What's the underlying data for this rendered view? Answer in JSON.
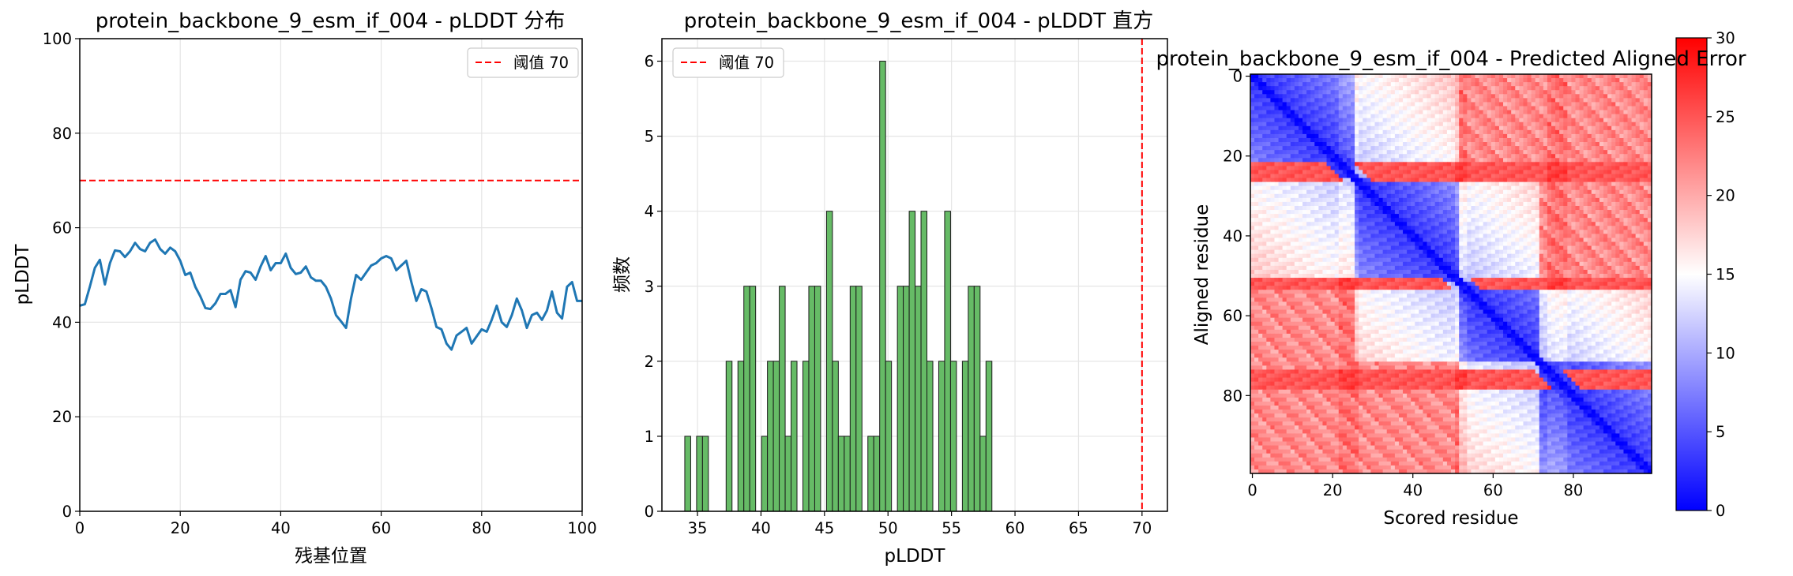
{
  "chart_data": [
    {
      "type": "line",
      "title": "protein_backbone_9_esm_if_004 - pLDDT 分布",
      "xlabel": "残基位置",
      "ylabel": "pLDDT",
      "xlim": [
        0,
        100
      ],
      "ylim": [
        0,
        100
      ],
      "xticks": [
        0,
        20,
        40,
        60,
        80,
        100
      ],
      "yticks": [
        0,
        20,
        40,
        60,
        80,
        100
      ],
      "grid": true,
      "legend": {
        "position": "top-right",
        "entries": [
          {
            "label": "阈值 70",
            "color": "#ff0000",
            "style": "dashed"
          }
        ]
      },
      "threshold": 70,
      "series": [
        {
          "color": "#1f77b4",
          "x": [
            0,
            1,
            2,
            3,
            4,
            5,
            6,
            7,
            8,
            9,
            10,
            11,
            12,
            13,
            14,
            15,
            16,
            17,
            18,
            19,
            20,
            21,
            22,
            23,
            24,
            25,
            26,
            27,
            28,
            29,
            30,
            31,
            32,
            33,
            34,
            35,
            36,
            37,
            38,
            39,
            40,
            41,
            42,
            43,
            44,
            45,
            46,
            47,
            48,
            49,
            50,
            51,
            52,
            53,
            54,
            55,
            56,
            57,
            58,
            59,
            60,
            61,
            62,
            63,
            64,
            65,
            66,
            67,
            68,
            69,
            70,
            71,
            72,
            73,
            74,
            75,
            76,
            77,
            78,
            79,
            80,
            81,
            82,
            83,
            84,
            85,
            86,
            87,
            88,
            89,
            90,
            91,
            92,
            93,
            94,
            95,
            96,
            97,
            98,
            99,
            100
          ],
          "y": [
            43.5,
            43.8,
            47.5,
            51.5,
            53.2,
            48.0,
            52.5,
            55.2,
            55.0,
            53.8,
            55.0,
            56.8,
            55.5,
            55.0,
            56.8,
            57.5,
            55.5,
            54.5,
            55.8,
            55.0,
            53.0,
            50.0,
            50.5,
            47.5,
            45.5,
            43.0,
            42.8,
            44.0,
            46.0,
            46.0,
            46.8,
            43.2,
            49.0,
            50.8,
            50.5,
            49.0,
            51.8,
            54.0,
            51.0,
            52.5,
            52.5,
            54.5,
            51.5,
            50.2,
            50.5,
            51.8,
            49.5,
            48.8,
            48.8,
            47.5,
            45.0,
            41.5,
            40.2,
            38.8,
            45.0,
            50.0,
            49.0,
            50.5,
            52.0,
            52.5,
            53.5,
            54.0,
            53.5,
            51.0,
            52.0,
            53.0,
            48.5,
            44.5,
            47.0,
            46.5,
            43.0,
            39.0,
            38.5,
            35.5,
            34.2,
            37.2,
            38.0,
            38.8,
            35.5,
            37.0,
            38.5,
            38.0,
            40.5,
            43.5,
            40.0,
            39.0,
            41.5,
            45.0,
            42.5,
            38.8,
            41.5,
            42.0,
            40.5,
            42.5,
            46.5,
            42.0,
            40.8,
            47.5,
            48.5,
            44.5,
            44.5
          ]
        }
      ]
    },
    {
      "type": "bar",
      "title": "protein_backbone_9_esm_if_004 - pLDDT 直方",
      "xlabel": "pLDDT",
      "ylabel": "频数",
      "xlim": [
        32.2,
        72.0
      ],
      "ylim": [
        0,
        6.3
      ],
      "xticks": [
        35,
        40,
        45,
        50,
        55,
        60,
        65,
        70
      ],
      "yticks": [
        0,
        1,
        2,
        3,
        4,
        5,
        6
      ],
      "grid": true,
      "legend": {
        "position": "top-left",
        "entries": [
          {
            "label": "阈值 70",
            "color": "#ff0000",
            "style": "dashed"
          }
        ]
      },
      "threshold": 70,
      "bar_color": "#66bb66",
      "bin_start": 34.0,
      "bin_width": 0.465,
      "values": [
        1,
        0,
        1,
        1,
        0,
        0,
        0,
        2,
        0,
        2,
        3,
        3,
        0,
        1,
        2,
        2,
        3,
        1,
        2,
        0,
        2,
        3,
        3,
        0,
        4,
        2,
        1,
        1,
        3,
        3,
        0,
        1,
        1,
        6,
        2,
        0,
        3,
        3,
        4,
        3,
        4,
        2,
        0,
        2,
        4,
        2,
        0,
        2,
        3,
        3,
        1,
        2,
        0,
        0,
        0,
        0,
        0,
        0
      ]
    },
    {
      "type": "heatmap",
      "title": "protein_backbone_9_esm_if_004 - Predicted Aligned Error",
      "xlabel": "Scored residue",
      "ylabel": "Aligned residue",
      "size": 100,
      "xticks": [
        0,
        20,
        40,
        60,
        80
      ],
      "yticks": [
        0,
        20,
        40,
        60,
        80
      ],
      "colorbar": {
        "min": 0,
        "max": 30,
        "ticks": [
          0,
          5,
          10,
          15,
          20,
          25,
          30
        ],
        "colormap": "bwr"
      }
    }
  ]
}
